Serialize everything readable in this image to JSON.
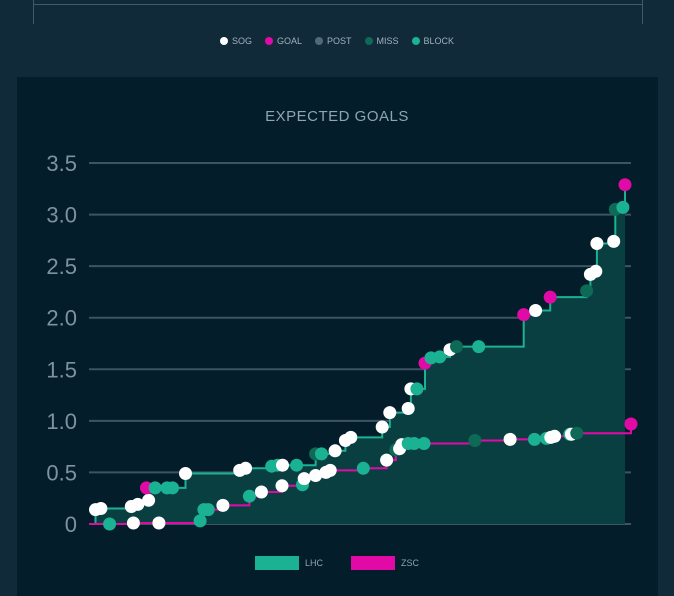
{
  "shot_legend": [
    {
      "label": "SOG",
      "color": "#ffffff"
    },
    {
      "label": "GOAL",
      "color": "#e20aa6"
    },
    {
      "label": "POST",
      "color": "#4f6b7b"
    },
    {
      "label": "MISS",
      "color": "#0e6a56"
    },
    {
      "label": "BLOCK",
      "color": "#1bb294"
    }
  ],
  "team_legend": [
    {
      "label": "LHC",
      "color": "#1bb294"
    },
    {
      "label": "ZSC",
      "color": "#e20aa6"
    }
  ],
  "chart_data": {
    "type": "line",
    "title": "EXPECTED GOALS",
    "ylim": [
      0,
      3.5
    ],
    "yticks": [
      "0",
      "0.5",
      "1.0",
      "1.5",
      "2.0",
      "2.5",
      "3.0",
      "3.5"
    ],
    "xlim": [
      0,
      100
    ],
    "colors": {
      "SOG": "#ffffff",
      "GOAL": "#e20aa6",
      "POST": "#4f6b7b",
      "MISS": "#0e6a56",
      "BLOCK": "#1bb294"
    },
    "series": [
      {
        "name": "LHC",
        "color": "#1bb294",
        "shots": [
          [
            1.2,
            0.14,
            "SOG"
          ],
          [
            2.2,
            0.15,
            "SOG"
          ],
          [
            7.8,
            0.17,
            "SOG"
          ],
          [
            9.0,
            0.19,
            "SOG"
          ],
          [
            11.0,
            0.23,
            "SOG"
          ],
          [
            10.6,
            0.35,
            "GOAL"
          ],
          [
            12.2,
            0.35,
            "BLOCK"
          ],
          [
            14.4,
            0.35,
            "BLOCK"
          ],
          [
            15.4,
            0.35,
            "BLOCK"
          ],
          [
            17.8,
            0.49,
            "SOG"
          ],
          [
            27.8,
            0.52,
            "SOG"
          ],
          [
            28.9,
            0.54,
            "SOG"
          ],
          [
            33.7,
            0.56,
            "BLOCK"
          ],
          [
            34.8,
            0.57,
            "BLOCK"
          ],
          [
            35.7,
            0.57,
            "SOG"
          ],
          [
            38.3,
            0.57,
            "BLOCK"
          ],
          [
            41.8,
            0.68,
            "MISS"
          ],
          [
            42.9,
            0.68,
            "BLOCK"
          ],
          [
            45.4,
            0.71,
            "SOG"
          ],
          [
            47.3,
            0.81,
            "SOG"
          ],
          [
            48.3,
            0.84,
            "SOG"
          ],
          [
            54.1,
            0.94,
            "SOG"
          ],
          [
            55.5,
            1.08,
            "SOG"
          ],
          [
            58.9,
            1.12,
            "SOG"
          ],
          [
            59.4,
            1.31,
            "SOG"
          ],
          [
            60.5,
            1.31,
            "BLOCK"
          ],
          [
            62.0,
            1.56,
            "GOAL"
          ],
          [
            63.1,
            1.61,
            "BLOCK"
          ],
          [
            64.7,
            1.62,
            "BLOCK"
          ],
          [
            66.6,
            1.69,
            "SOG"
          ],
          [
            67.8,
            1.72,
            "MISS"
          ],
          [
            71.9,
            1.72,
            "BLOCK"
          ],
          [
            80.2,
            2.03,
            "GOAL"
          ],
          [
            82.4,
            2.07,
            "SOG"
          ],
          [
            85.1,
            2.2,
            "GOAL"
          ],
          [
            91.8,
            2.26,
            "MISS"
          ],
          [
            92.5,
            2.42,
            "SOG"
          ],
          [
            93.5,
            2.45,
            "SOG"
          ],
          [
            93.7,
            2.72,
            "SOG"
          ],
          [
            96.8,
            2.74,
            "SOG"
          ],
          [
            97.1,
            3.05,
            "MISS"
          ],
          [
            98.5,
            3.07,
            "BLOCK"
          ],
          [
            98.9,
            3.29,
            "GOAL"
          ]
        ],
        "end": [
          98.9,
          3.29
        ]
      },
      {
        "name": "ZSC",
        "color": "#e20aa6",
        "shots": [
          [
            3.8,
            0.0,
            "BLOCK"
          ],
          [
            8.2,
            0.01,
            "SOG"
          ],
          [
            12.9,
            0.01,
            "SOG"
          ],
          [
            20.5,
            0.03,
            "BLOCK"
          ],
          [
            21.2,
            0.14,
            "BLOCK"
          ],
          [
            22.0,
            0.14,
            "BLOCK"
          ],
          [
            24.7,
            0.18,
            "SOG"
          ],
          [
            29.6,
            0.27,
            "BLOCK"
          ],
          [
            31.8,
            0.31,
            "SOG"
          ],
          [
            35.6,
            0.37,
            "SOG"
          ],
          [
            39.4,
            0.38,
            "BLOCK"
          ],
          [
            39.7,
            0.44,
            "SOG"
          ],
          [
            41.8,
            0.47,
            "SOG"
          ],
          [
            43.7,
            0.5,
            "SOG"
          ],
          [
            44.5,
            0.52,
            "SOG"
          ],
          [
            50.6,
            0.54,
            "BLOCK"
          ],
          [
            54.9,
            0.62,
            "SOG"
          ],
          [
            56.6,
            0.72,
            "MISS"
          ],
          [
            57.3,
            0.73,
            "SOG"
          ],
          [
            57.7,
            0.77,
            "SOG"
          ],
          [
            58.9,
            0.78,
            "BLOCK"
          ],
          [
            60.0,
            0.78,
            "BLOCK"
          ],
          [
            61.8,
            0.78,
            "BLOCK"
          ],
          [
            71.2,
            0.81,
            "MISS"
          ],
          [
            77.7,
            0.82,
            "SOG"
          ],
          [
            82.2,
            0.82,
            "BLOCK"
          ],
          [
            84.4,
            0.83,
            "BLOCK"
          ],
          [
            85.2,
            0.84,
            "SOG"
          ],
          [
            85.9,
            0.85,
            "SOG"
          ],
          [
            88.7,
            0.87,
            "BLOCK"
          ],
          [
            89.0,
            0.87,
            "SOG"
          ],
          [
            90.0,
            0.88,
            "MISS"
          ],
          [
            100.0,
            0.97,
            "GOAL"
          ]
        ],
        "end": [
          100.0,
          0.97
        ]
      }
    ]
  }
}
